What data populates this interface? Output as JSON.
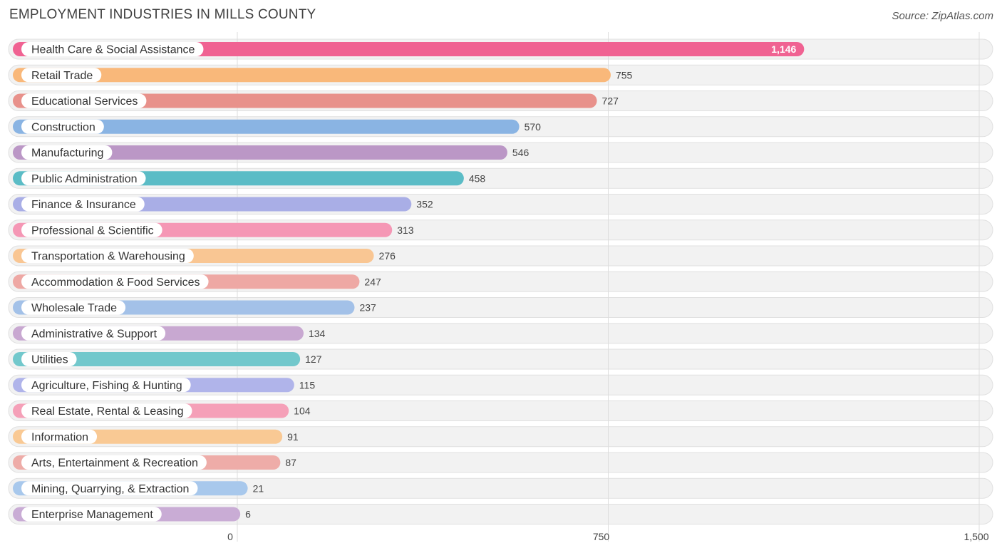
{
  "header": {
    "title": "EMPLOYMENT INDUSTRIES IN MILLS COUNTY",
    "source": "Source: ZipAtlas.com"
  },
  "chart_data": {
    "type": "bar",
    "orientation": "horizontal",
    "title": "EMPLOYMENT INDUSTRIES IN MILLS COUNTY",
    "xlim": [
      0,
      1500
    ],
    "ticks": [
      0,
      750,
      1500
    ],
    "tick_labels": [
      "0",
      "750",
      "1,500"
    ],
    "grid": true,
    "categories": [
      "Health Care & Social Assistance",
      "Retail Trade",
      "Educational Services",
      "Construction",
      "Manufacturing",
      "Public Administration",
      "Finance & Insurance",
      "Professional & Scientific",
      "Transportation & Warehousing",
      "Accommodation & Food Services",
      "Wholesale Trade",
      "Administrative & Support",
      "Utilities",
      "Agriculture, Fishing & Hunting",
      "Real Estate, Rental & Leasing",
      "Information",
      "Arts, Entertainment & Recreation",
      "Mining, Quarrying, & Extraction",
      "Enterprise Management"
    ],
    "values": [
      1146,
      755,
      727,
      570,
      546,
      458,
      352,
      313,
      276,
      247,
      237,
      134,
      127,
      115,
      104,
      91,
      87,
      21,
      6
    ],
    "value_labels": [
      "1,146",
      "755",
      "727",
      "570",
      "546",
      "458",
      "352",
      "313",
      "276",
      "247",
      "237",
      "134",
      "127",
      "115",
      "104",
      "91",
      "87",
      "21",
      "6"
    ],
    "colors": [
      "#f06292",
      "#f9b87a",
      "#e8918b",
      "#8ab4e3",
      "#bb97c6",
      "#5bbcc6",
      "#a9aee6",
      "#f597b5",
      "#f9c693",
      "#eea8a4",
      "#a3c1e8",
      "#c8a8d1",
      "#72c8cc",
      "#b0b4ea",
      "#f5a0b8",
      "#f9c994",
      "#eeaca8",
      "#a8c8ec",
      "#c9acd5"
    ]
  }
}
